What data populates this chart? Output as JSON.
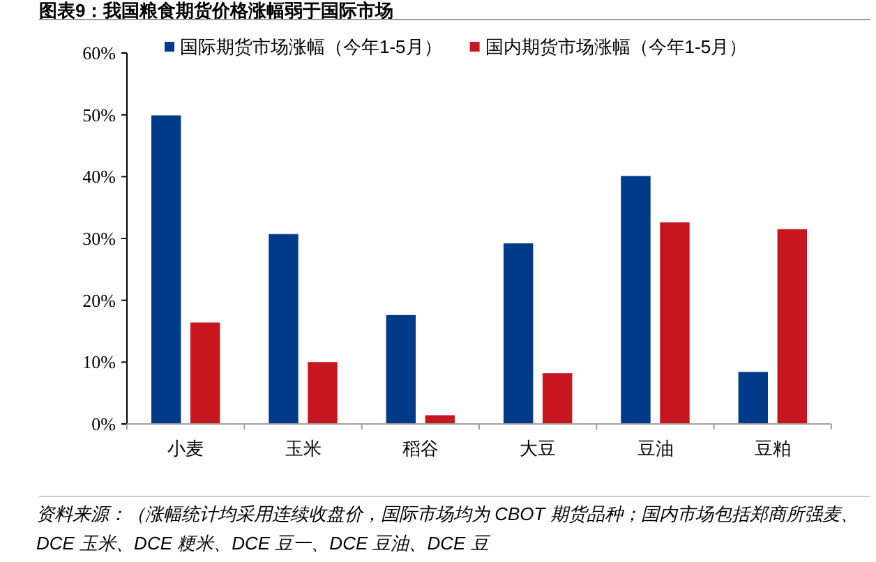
{
  "chart_data": {
    "type": "bar",
    "title": "图表9：我国粮食期货价格涨幅弱于国际市场",
    "categories": [
      "小麦",
      "玉米",
      "稻谷",
      "大豆",
      "豆油",
      "豆粕"
    ],
    "series": [
      {
        "name": "国际期货市场涨幅（今年1-5月）",
        "color": "#023a8a",
        "values": [
          50.0,
          30.8,
          17.7,
          29.3,
          40.2,
          8.5
        ]
      },
      {
        "name": "国内期货市场涨幅（今年1-5月）",
        "color": "#c8161e",
        "values": [
          16.5,
          10.1,
          1.5,
          8.3,
          32.7,
          31.6
        ]
      }
    ],
    "ylim": [
      0,
      60
    ],
    "yticks": [
      {
        "value": 0,
        "label": "0%"
      },
      {
        "value": 10,
        "label": "10%"
      },
      {
        "value": 20,
        "label": "20%"
      },
      {
        "value": 30,
        "label": "30%"
      },
      {
        "value": 40,
        "label": "40%"
      },
      {
        "value": 50,
        "label": "50%"
      },
      {
        "value": 60,
        "label": "60%"
      }
    ],
    "grid": false,
    "legend": "top",
    "annotations": [
      "资料来源：（涨幅统计均采用连续收盘价，国际市场均为 CBOT 期货品种；国内市场包括郑商所强麦、DCE 玉米、DCE 粳米、DCE 豆一、DCE 豆油、DCE 豆"
    ]
  }
}
